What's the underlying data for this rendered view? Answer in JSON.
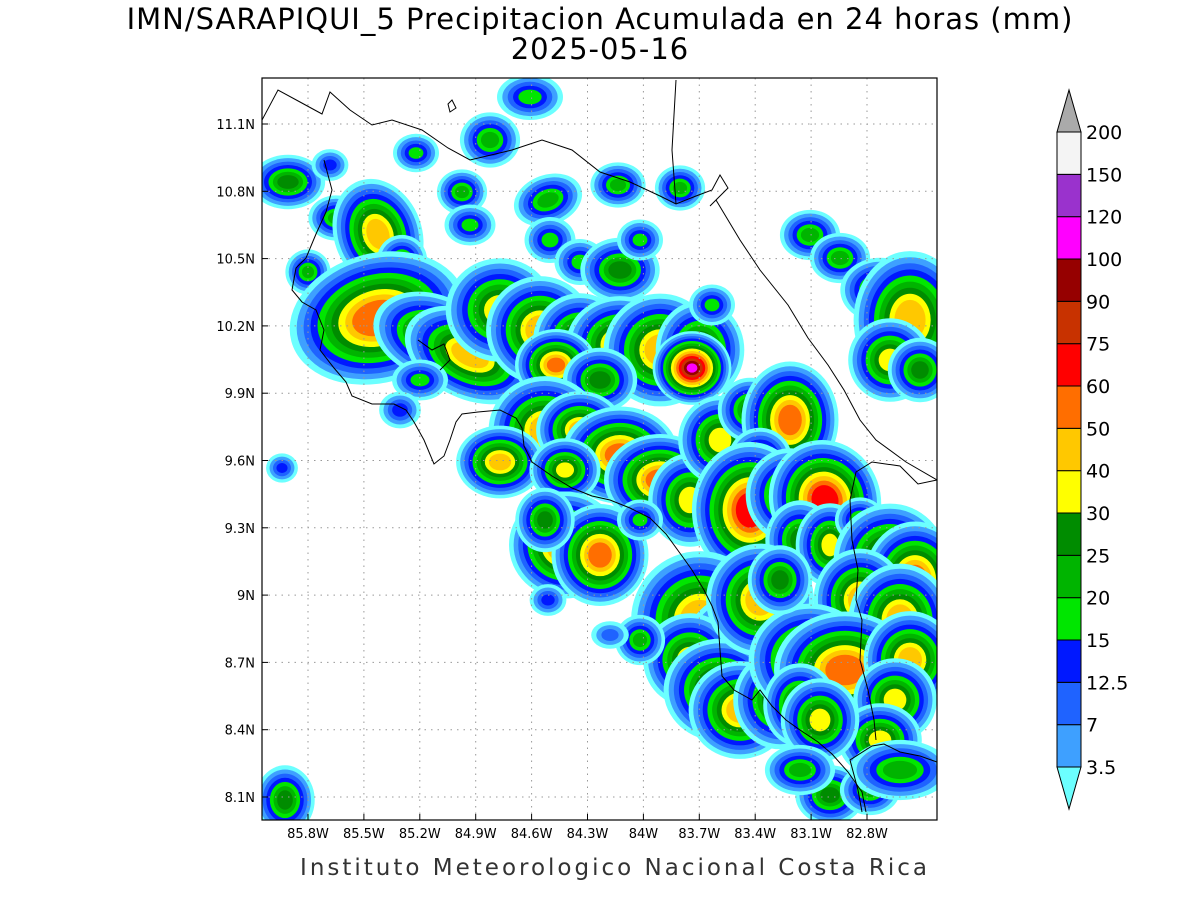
{
  "title": "IMN/SARAPIQUI_5 Precipitacion Acumulada en 24 horas (mm)",
  "date": "2025-05-16",
  "footer": "Instituto Meteorologico Nacional Costa Rica",
  "x_ticks": [
    "85.8W",
    "85.5W",
    "85.2W",
    "84.9W",
    "84.6W",
    "84.3W",
    "84W",
    "83.7W",
    "83.4W",
    "83.1W",
    "82.8W"
  ],
  "y_ticks": [
    "11.1N",
    "10.8N",
    "10.5N",
    "10.2N",
    "9.9N",
    "9.6N",
    "9.3N",
    "9N",
    "8.7N",
    "8.4N",
    "8.1N"
  ],
  "legend": {
    "labels": [
      "3.5",
      "7",
      "12.5",
      "15",
      "20",
      "25",
      "30",
      "40",
      "50",
      "60",
      "75",
      "90",
      "100",
      "120",
      "150",
      "200"
    ],
    "colors": [
      "#6cffff",
      "#3ea0ff",
      "#1f63ff",
      "#0018ff",
      "#00e600",
      "#00b400",
      "#008c00",
      "#ffff00",
      "#ffc800",
      "#ff6e00",
      "#ff0000",
      "#c83200",
      "#960000",
      "#ff00ff",
      "#9a32cd",
      "#f4f4f4",
      "#aaaaaa"
    ]
  },
  "colors": {
    "coastline": "#000000",
    "grid": "#999999"
  }
}
